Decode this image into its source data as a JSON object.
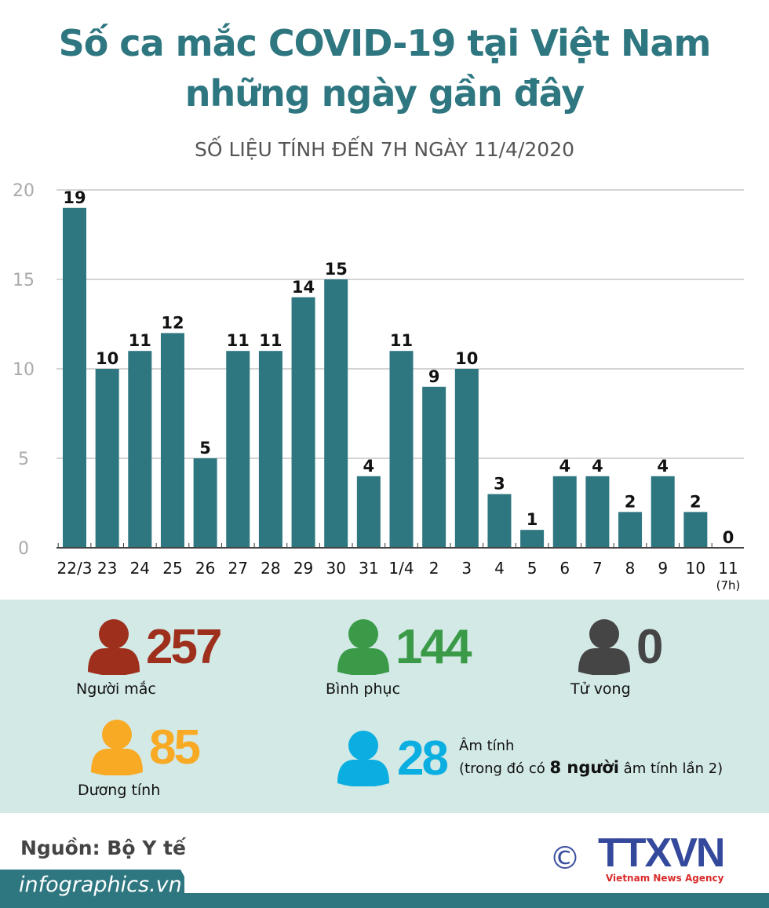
{
  "title_line1": "Số ca mắc COVID-19 tại Việt Nam",
  "title_line2": "những ngày gần đây",
  "subtitle": "SỐ LIỆU TÍNH ĐẾN 7H NGÀY 11/4/2020",
  "chart_data": {
    "type": "bar",
    "categories": [
      "22/3",
      "23",
      "24",
      "25",
      "26",
      "27",
      "28",
      "29",
      "30",
      "31",
      "1/4",
      "2",
      "3",
      "4",
      "5",
      "6",
      "7",
      "8",
      "9",
      "10",
      "11"
    ],
    "category_notes": {
      "11": "(7h)"
    },
    "values": [
      19,
      10,
      11,
      12,
      5,
      11,
      11,
      14,
      15,
      4,
      11,
      9,
      10,
      3,
      1,
      4,
      4,
      2,
      4,
      2,
      0
    ],
    "ylim": [
      0,
      20
    ],
    "yticks": [
      0,
      5,
      10,
      15,
      20
    ],
    "grid": true,
    "bar_color": "#2e7680",
    "title": "",
    "xlabel": "",
    "ylabel": ""
  },
  "stats": {
    "infected": {
      "value": "257",
      "label": "Người mắc",
      "color": "#9e2f1d"
    },
    "recovered": {
      "value": "144",
      "label": "Bình phục",
      "color": "#3a9a48"
    },
    "deaths": {
      "value": "0",
      "label": "Tử vong",
      "color": "#454545"
    },
    "positive": {
      "value": "85",
      "label": "Dương tính",
      "color": "#f9aa25"
    },
    "negative": {
      "value": "28",
      "label": "Âm tính",
      "note_pre": "(trong đó có ",
      "note_bold": "8 người",
      "note_post": " âm tính lần 2)",
      "color": "#0aaee0"
    }
  },
  "footer": {
    "source": "Nguồn: Bộ Y tế",
    "site": "infographics.vn",
    "logo": "TTXVN",
    "logo_sub": "Vietnam News Agency",
    "copyright": "©"
  }
}
